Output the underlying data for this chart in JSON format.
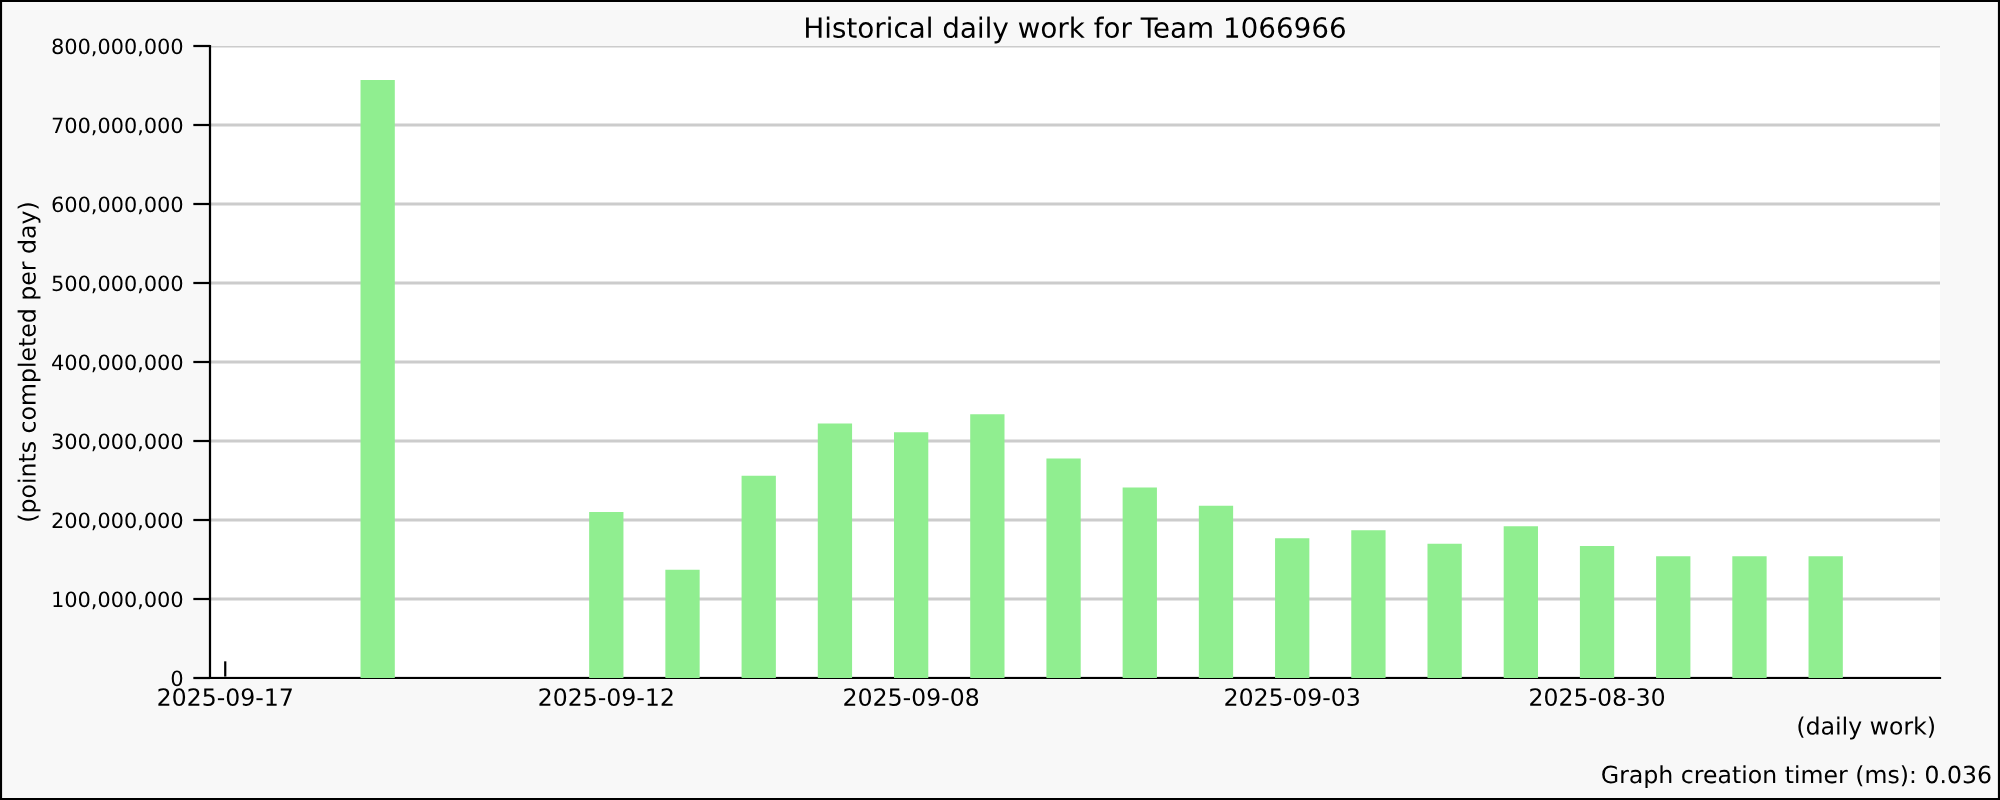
{
  "chart_data": {
    "type": "bar",
    "title": "Historical daily work for Team 1066966",
    "xlabel": "(daily work)",
    "ylabel": "(points completed per day)",
    "annotations": [
      "Graph creation timer (ms): 0.036"
    ],
    "categories": [
      "2025-09-17",
      null,
      null,
      null,
      null,
      "2025-09-12",
      null,
      null,
      null,
      "2025-09-08",
      null,
      null,
      null,
      null,
      "2025-09-03",
      null,
      null,
      null,
      "2025-08-30",
      null,
      null,
      null,
      null
    ],
    "values": [
      null,
      null,
      757000000,
      null,
      null,
      210000000,
      137000000,
      256000000,
      322000000,
      311000000,
      334000000,
      278000000,
      241000000,
      218000000,
      177000000,
      187000000,
      170000000,
      192000000,
      167000000,
      154000000,
      154000000,
      154000000,
      null
    ],
    "color": "#90ee90",
    "ylim": [
      0,
      800000000
    ],
    "yticks": [
      {
        "value": 0,
        "label": "0"
      },
      {
        "value": 100000000,
        "label": "100,000,000"
      },
      {
        "value": 200000000,
        "label": "200,000,000"
      },
      {
        "value": 300000000,
        "label": "300,000,000"
      },
      {
        "value": 400000000,
        "label": "400,000,000"
      },
      {
        "value": 500000000,
        "label": "500,000,000"
      },
      {
        "value": 600000000,
        "label": "600,000,000"
      },
      {
        "value": 700000000,
        "label": "700,000,000"
      },
      {
        "value": 800000000,
        "label": "800,000,000"
      }
    ],
    "grid": "y",
    "legend": false
  }
}
